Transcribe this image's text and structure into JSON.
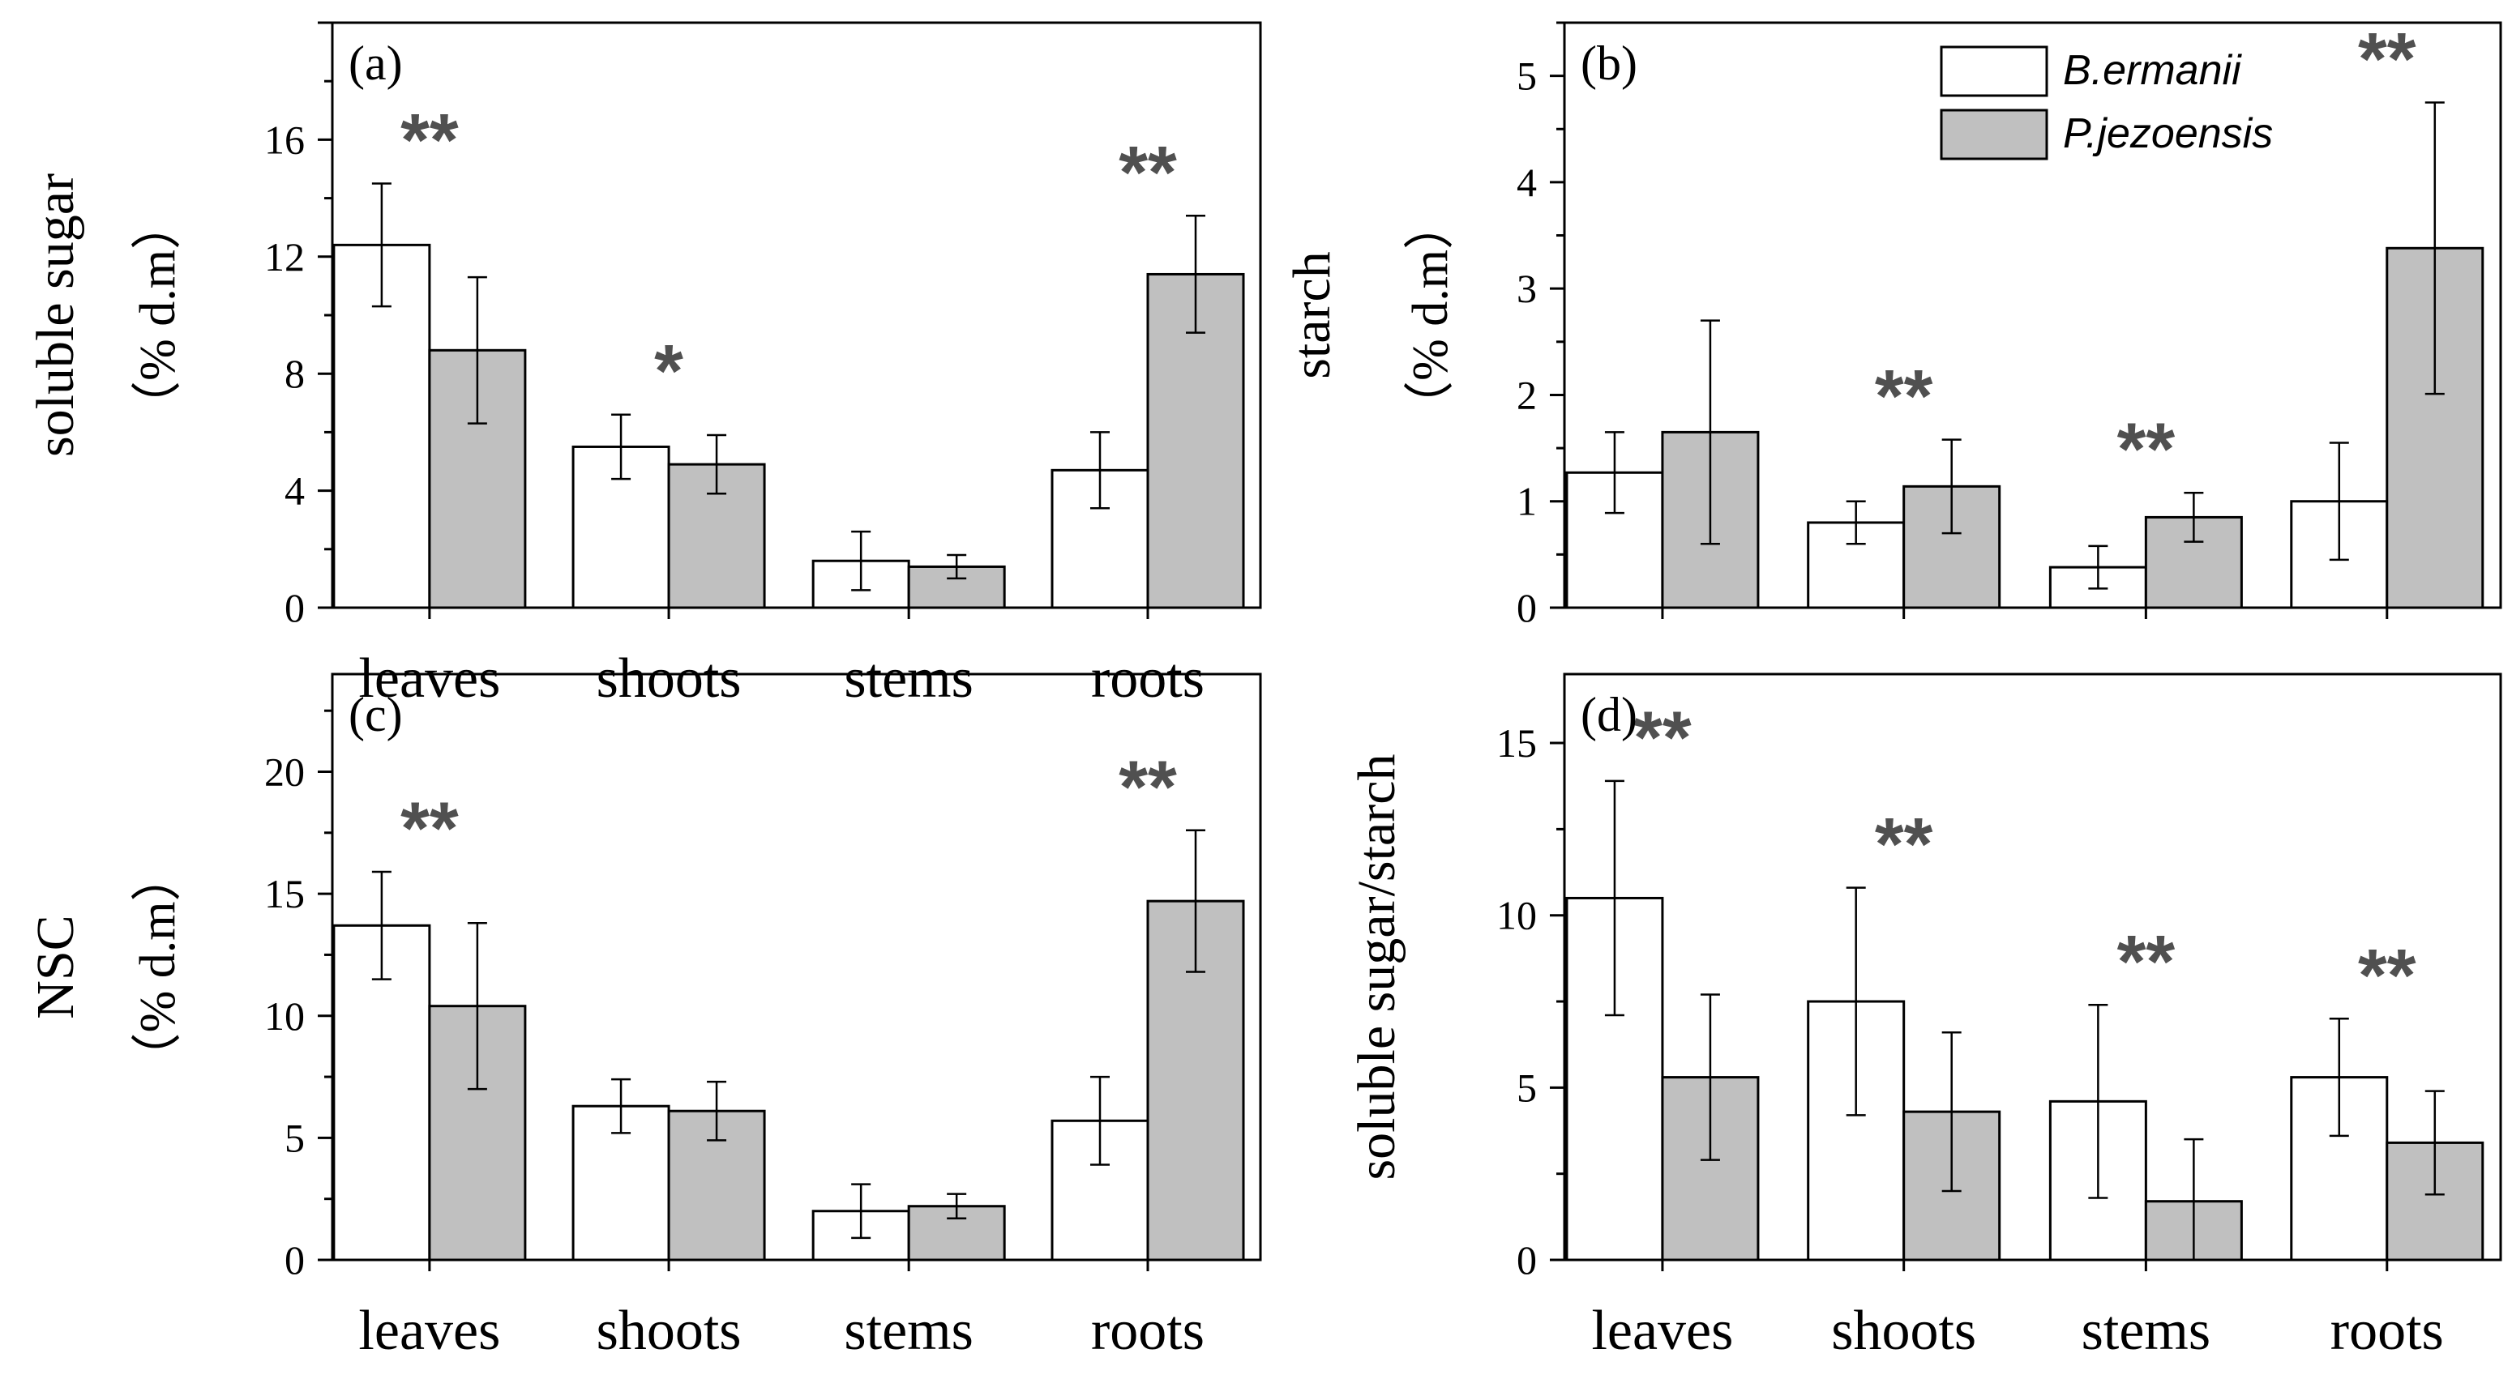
{
  "series_names": [
    "B.ermanii",
    "P.jezoensis"
  ],
  "colors": {
    "b_ermanii": "#ffffff",
    "p_jezoensis": "#c0c0c0",
    "sig": "#505050",
    "axis": "#000000"
  },
  "chart_data": [
    {
      "panel": "(a)",
      "type": "bar",
      "ylabel": "soluble sugar",
      "yunit": "（% d.m）",
      "ylim": [
        0,
        20
      ],
      "yticks": [
        "0",
        "4",
        "8",
        "12",
        "16"
      ],
      "categories": [
        "leaves",
        "shoots",
        "stems",
        "roots"
      ],
      "xtick_labels_shown": true,
      "series": [
        {
          "name": "B.ermanii",
          "values": [
            12.4,
            5.5,
            1.6,
            4.7
          ],
          "errors": [
            2.1,
            1.1,
            1.0,
            1.3
          ]
        },
        {
          "name": "P.jezoensis",
          "values": [
            8.8,
            4.9,
            1.4,
            11.4
          ],
          "errors": [
            2.5,
            1.0,
            0.4,
            2.0
          ]
        }
      ],
      "significance": [
        "**",
        "*",
        "",
        "**"
      ],
      "legend": false
    },
    {
      "panel": "(b)",
      "type": "bar",
      "ylabel": "starch",
      "yunit": "（% d.m）",
      "ylim": [
        0,
        5.5
      ],
      "yticks": [
        "0",
        "1",
        "2",
        "3",
        "4",
        "5"
      ],
      "categories": [
        "leaves",
        "shoots",
        "stems",
        "roots"
      ],
      "xtick_labels_shown": false,
      "series": [
        {
          "name": "B.ermanii",
          "values": [
            1.27,
            0.8,
            0.38,
            1.0
          ],
          "errors": [
            0.38,
            0.2,
            0.2,
            0.55
          ]
        },
        {
          "name": "P.jezoensis",
          "values": [
            1.65,
            1.14,
            0.85,
            3.38
          ],
          "errors": [
            1.05,
            0.44,
            0.23,
            1.37
          ]
        }
      ],
      "significance": [
        "",
        "**",
        "**",
        "**"
      ],
      "legend": true,
      "legend_position": "top-right"
    },
    {
      "panel": "(c)",
      "type": "bar",
      "ylabel": "NSC",
      "yunit": "（% d.m）",
      "ylim": [
        0,
        24
      ],
      "yticks": [
        "0",
        "5",
        "10",
        "15",
        "20"
      ],
      "categories": [
        "leaves",
        "shoots",
        "stems",
        "roots"
      ],
      "xtick_labels_shown": true,
      "series": [
        {
          "name": "B.ermanii",
          "values": [
            13.7,
            6.3,
            2.0,
            5.7
          ],
          "errors": [
            2.2,
            1.1,
            1.1,
            1.8
          ]
        },
        {
          "name": "P.jezoensis",
          "values": [
            10.4,
            6.1,
            2.2,
            14.7
          ],
          "errors": [
            3.4,
            1.2,
            0.5,
            2.9
          ]
        }
      ],
      "significance": [
        "**",
        "",
        "",
        "**"
      ],
      "legend": false
    },
    {
      "panel": "(d)",
      "type": "bar",
      "ylabel": "soluble sugar/starch",
      "yunit": "",
      "ylim": [
        0,
        17
      ],
      "yticks": [
        "0",
        "5",
        "10",
        "15"
      ],
      "categories": [
        "leaves",
        "shoots",
        "stems",
        "roots"
      ],
      "xtick_labels_shown": true,
      "series": [
        {
          "name": "B.ermanii",
          "values": [
            10.5,
            7.5,
            4.6,
            5.3
          ],
          "errors": [
            3.4,
            3.3,
            2.8,
            1.7
          ]
        },
        {
          "name": "P.jezoensis",
          "values": [
            5.3,
            4.3,
            1.7,
            3.4
          ],
          "errors": [
            2.4,
            2.3,
            1.8,
            1.5
          ]
        }
      ],
      "significance": [
        "**",
        "**",
        "**",
        "**"
      ],
      "legend": false
    }
  ]
}
